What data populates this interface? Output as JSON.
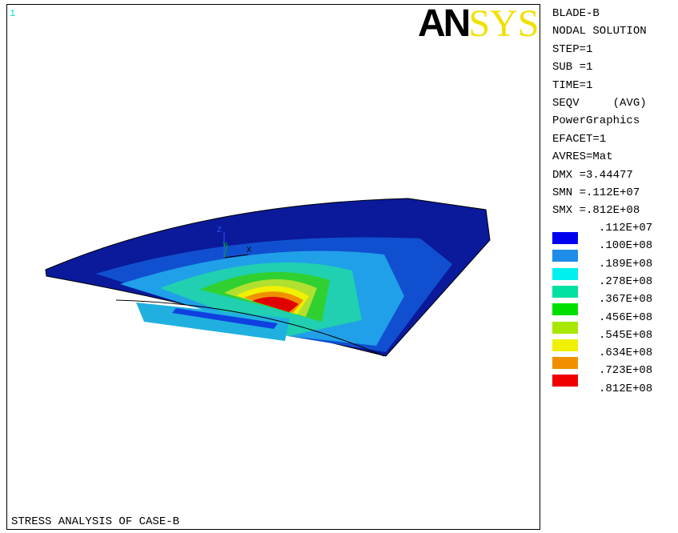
{
  "viewport": {
    "number": "1"
  },
  "logo": {
    "dark": "AN",
    "light": "SYS"
  },
  "triad": {
    "z": "Z",
    "y": "Y",
    "x": "X"
  },
  "info": [
    "BLADE-B",
    "NODAL SOLUTION",
    "STEP=1",
    "SUB =1",
    "TIME=1",
    "SEQV     (AVG)",
    "PowerGraphics",
    "EFACET=1",
    "AVRES=Mat",
    "DMX =3.44477",
    "SMN =.112E+07",
    "SMX =.812E+08"
  ],
  "contour": {
    "levels": [
      ".112E+07",
      ".100E+08",
      ".189E+08",
      ".278E+08",
      ".367E+08",
      ".456E+08",
      ".545E+08",
      ".634E+08",
      ".723E+08",
      ".812E+08"
    ],
    "colors": [
      "#0000f0",
      "#1e8ce8",
      "#00f0f0",
      "#00e0a0",
      "#00e000",
      "#a8e800",
      "#f0f000",
      "#f09000",
      "#f00000"
    ]
  },
  "footer": "STRESS ANALYSIS OF CASE-B"
}
